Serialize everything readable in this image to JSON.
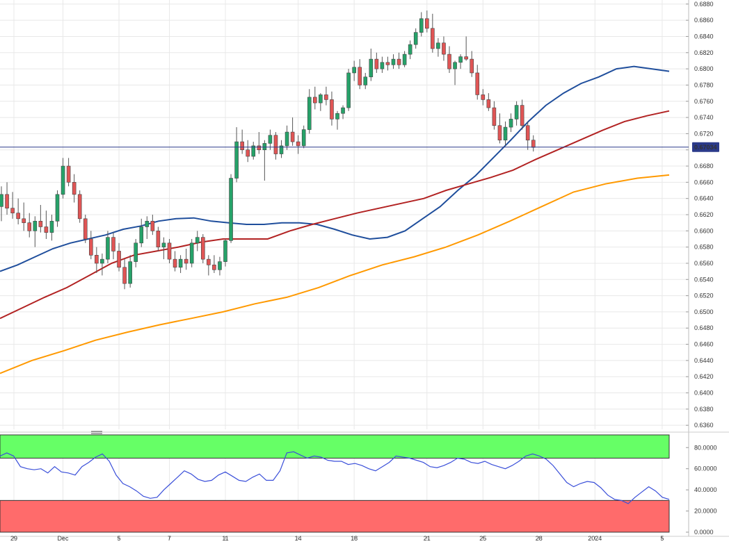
{
  "chart_data": [
    {
      "type": "candlestick",
      "price_axis": {
        "ylim": [
          0.6355,
          0.6885
        ],
        "tick_labels": [
          "0.6880",
          "0.6860",
          "0.6840",
          "0.6820",
          "0.6800",
          "0.6780",
          "0.6760",
          "0.6740",
          "0.6720",
          "0.6700",
          "0.6680",
          "0.6660",
          "0.6640",
          "0.6620",
          "0.6600",
          "0.6580",
          "0.6560",
          "0.6540",
          "0.6520",
          "0.6500",
          "0.6480",
          "0.6460",
          "0.6440",
          "0.6420",
          "0.6400",
          "0.6380",
          "0.6360"
        ],
        "current_price_label": "0.67034",
        "current_price": 0.67034
      },
      "x_axis": {
        "tick_labels": [
          "29",
          "Dec",
          "5",
          "7",
          "11",
          "14",
          "18",
          "21",
          "25",
          "28",
          "2024",
          "5"
        ],
        "tick_positions_bar": [
          0,
          11,
          21,
          30,
          40,
          53,
          63,
          76,
          86,
          96,
          106,
          118
        ]
      },
      "candles_ohlc_4h": [
        [
          0.663,
          0.6655,
          0.6612,
          0.6645
        ],
        [
          0.6645,
          0.666,
          0.662,
          0.6628
        ],
        [
          0.6628,
          0.6648,
          0.6615,
          0.6622
        ],
        [
          0.6622,
          0.664,
          0.6608,
          0.6615
        ],
        [
          0.6615,
          0.6635,
          0.66,
          0.661
        ],
        [
          0.661,
          0.6622,
          0.6592,
          0.66
        ],
        [
          0.66,
          0.6618,
          0.658,
          0.6612
        ],
        [
          0.6612,
          0.6632,
          0.6598,
          0.6605
        ],
        [
          0.6605,
          0.6625,
          0.659,
          0.6598
        ],
        [
          0.6598,
          0.662,
          0.6588,
          0.6612
        ],
        [
          0.6612,
          0.665,
          0.6605,
          0.6645
        ],
        [
          0.6645,
          0.669,
          0.664,
          0.668
        ],
        [
          0.668,
          0.669,
          0.6655,
          0.666
        ],
        [
          0.666,
          0.667,
          0.6635,
          0.6645
        ],
        [
          0.6645,
          0.665,
          0.661,
          0.6615
        ],
        [
          0.6615,
          0.662,
          0.6585,
          0.659
        ],
        [
          0.659,
          0.66,
          0.6565,
          0.657
        ],
        [
          0.657,
          0.658,
          0.6548,
          0.656
        ],
        [
          0.656,
          0.6572,
          0.6545,
          0.6565
        ],
        [
          0.6565,
          0.66,
          0.656,
          0.6592
        ],
        [
          0.6592,
          0.6598,
          0.6565,
          0.6575
        ],
        [
          0.6575,
          0.6585,
          0.655,
          0.6555
        ],
        [
          0.6555,
          0.6565,
          0.6528,
          0.6535
        ],
        [
          0.6535,
          0.657,
          0.653,
          0.6562
        ],
        [
          0.6562,
          0.659,
          0.6555,
          0.6585
        ],
        [
          0.6585,
          0.6615,
          0.658,
          0.6605
        ],
        [
          0.6605,
          0.6618,
          0.659,
          0.6612
        ],
        [
          0.6612,
          0.662,
          0.6595,
          0.66
        ],
        [
          0.66,
          0.6605,
          0.6575,
          0.658
        ],
        [
          0.658,
          0.6592,
          0.6565,
          0.6585
        ],
        [
          0.6585,
          0.659,
          0.656,
          0.6565
        ],
        [
          0.6565,
          0.6575,
          0.655,
          0.6555
        ],
        [
          0.6555,
          0.657,
          0.6548,
          0.6565
        ],
        [
          0.6565,
          0.6578,
          0.6552,
          0.656
        ],
        [
          0.656,
          0.659,
          0.6555,
          0.6585
        ],
        [
          0.6585,
          0.66,
          0.6575,
          0.6592
        ],
        [
          0.6592,
          0.6596,
          0.656,
          0.6565
        ],
        [
          0.6565,
          0.657,
          0.6545,
          0.6558
        ],
        [
          0.6558,
          0.657,
          0.6548,
          0.6552
        ],
        [
          0.6552,
          0.6568,
          0.6545,
          0.6562
        ],
        [
          0.6562,
          0.659,
          0.6556,
          0.6588
        ],
        [
          0.6588,
          0.667,
          0.6585,
          0.6665
        ],
        [
          0.6665,
          0.6728,
          0.666,
          0.671
        ],
        [
          0.671,
          0.6725,
          0.6695,
          0.67
        ],
        [
          0.67,
          0.6712,
          0.6685,
          0.6692
        ],
        [
          0.6692,
          0.671,
          0.6688,
          0.6705
        ],
        [
          0.6705,
          0.6722,
          0.6695,
          0.67
        ],
        [
          0.67,
          0.6712,
          0.6662,
          0.6708
        ],
        [
          0.6708,
          0.6725,
          0.67,
          0.6718
        ],
        [
          0.6718,
          0.6722,
          0.6688,
          0.6695
        ],
        [
          0.6695,
          0.6712,
          0.669,
          0.6705
        ],
        [
          0.6705,
          0.673,
          0.67,
          0.6722
        ],
        [
          0.6722,
          0.674,
          0.6705,
          0.671
        ],
        [
          0.671,
          0.6718,
          0.6695,
          0.6705
        ],
        [
          0.6705,
          0.673,
          0.6702,
          0.6725
        ],
        [
          0.6725,
          0.6775,
          0.672,
          0.6765
        ],
        [
          0.6765,
          0.6778,
          0.675,
          0.6758
        ],
        [
          0.6758,
          0.677,
          0.6748,
          0.6768
        ],
        [
          0.6768,
          0.6778,
          0.6755,
          0.6762
        ],
        [
          0.6762,
          0.6772,
          0.673,
          0.6738
        ],
        [
          0.6738,
          0.6748,
          0.6725,
          0.6745
        ],
        [
          0.6745,
          0.6755,
          0.6738,
          0.6752
        ],
        [
          0.6752,
          0.68,
          0.6748,
          0.6795
        ],
        [
          0.6795,
          0.681,
          0.6785,
          0.6802
        ],
        [
          0.6802,
          0.6812,
          0.6775,
          0.678
        ],
        [
          0.678,
          0.6795,
          0.6775,
          0.679
        ],
        [
          0.679,
          0.6825,
          0.6785,
          0.6812
        ],
        [
          0.6812,
          0.682,
          0.6795,
          0.68
        ],
        [
          0.68,
          0.6815,
          0.6795,
          0.6808
        ],
        [
          0.6808,
          0.6815,
          0.6798,
          0.6805
        ],
        [
          0.6805,
          0.6818,
          0.68,
          0.6812
        ],
        [
          0.6812,
          0.682,
          0.68,
          0.6805
        ],
        [
          0.6805,
          0.6822,
          0.6802,
          0.6818
        ],
        [
          0.6818,
          0.6835,
          0.6812,
          0.683
        ],
        [
          0.683,
          0.685,
          0.6825,
          0.6845
        ],
        [
          0.6845,
          0.687,
          0.684,
          0.6862
        ],
        [
          0.6862,
          0.6872,
          0.6845,
          0.685
        ],
        [
          0.685,
          0.6868,
          0.682,
          0.6825
        ],
        [
          0.6825,
          0.6838,
          0.6815,
          0.6832
        ],
        [
          0.6832,
          0.684,
          0.681,
          0.6818
        ],
        [
          0.6818,
          0.6828,
          0.6795,
          0.68
        ],
        [
          0.68,
          0.681,
          0.678,
          0.6808
        ],
        [
          0.6808,
          0.6818,
          0.68,
          0.6815
        ],
        [
          0.6815,
          0.684,
          0.681,
          0.6812
        ],
        [
          0.6812,
          0.6822,
          0.679,
          0.6795
        ],
        [
          0.6795,
          0.6805,
          0.6762,
          0.6768
        ],
        [
          0.6768,
          0.6775,
          0.6755,
          0.6762
        ],
        [
          0.6762,
          0.677,
          0.6748,
          0.6752
        ],
        [
          0.6752,
          0.676,
          0.6725,
          0.673
        ],
        [
          0.673,
          0.6745,
          0.6708,
          0.6712
        ],
        [
          0.6712,
          0.6735,
          0.6705,
          0.6728
        ],
        [
          0.6728,
          0.6745,
          0.6722,
          0.6738
        ],
        [
          0.6738,
          0.676,
          0.673,
          0.6755
        ],
        [
          0.6755,
          0.6762,
          0.6725,
          0.673
        ],
        [
          0.673,
          0.6735,
          0.67,
          0.6712
        ],
        [
          0.6712,
          0.6718,
          0.6698,
          0.6703
        ]
      ],
      "series": [
        {
          "name": "",
          "color": "#1f4e9c",
          "values": [
            0.655,
            0.6558,
            0.6568,
            0.6578,
            0.6585,
            0.659,
            0.6595,
            0.6602,
            0.6606,
            0.6612,
            0.6615,
            0.6616,
            0.6612,
            0.661,
            0.6608,
            0.6608,
            0.661,
            0.661,
            0.6608,
            0.6602,
            0.6595,
            0.659,
            0.6592,
            0.66,
            0.6615,
            0.663,
            0.665,
            0.6668,
            0.669,
            0.6712,
            0.6735,
            0.6755,
            0.677,
            0.6782,
            0.679,
            0.68,
            0.6803,
            0.68,
            0.6797
          ]
        },
        {
          "name": "",
          "color": "#b22222",
          "values": [
            0.6492,
            0.6505,
            0.6518,
            0.653,
            0.6545,
            0.656,
            0.657,
            0.6575,
            0.658,
            0.6586,
            0.659,
            0.659,
            0.659,
            0.66,
            0.6608,
            0.6615,
            0.6622,
            0.6628,
            0.6634,
            0.664,
            0.665,
            0.6658,
            0.6666,
            0.6675,
            0.6688,
            0.67,
            0.6712,
            0.6724,
            0.6735,
            0.6742,
            0.6748
          ]
        },
        {
          "name": "",
          "color": "#ff9900",
          "values": [
            0.6424,
            0.644,
            0.6452,
            0.6465,
            0.6475,
            0.6484,
            0.6492,
            0.65,
            0.651,
            0.6518,
            0.653,
            0.6545,
            0.6558,
            0.6568,
            0.658,
            0.6595,
            0.6612,
            0.663,
            0.6648,
            0.6658,
            0.6665,
            0.6669
          ]
        }
      ],
      "horizontal_line": {
        "value": 0.67034,
        "color": "#2b3a8a"
      }
    },
    {
      "type": "line",
      "ylim": [
        0,
        92
      ],
      "tick_labels": [
        "80.0000",
        "60.0000",
        "40.0000",
        "20.0000",
        "0.0000"
      ],
      "bands": [
        {
          "from": 70,
          "to": 92,
          "color": "#66ff66"
        },
        {
          "from": 0,
          "to": 30,
          "color": "#ff6b6b"
        }
      ],
      "series": [
        {
          "name": "",
          "color": "#3a4fd9",
          "values": [
            72,
            75,
            72,
            62,
            60,
            59,
            60,
            56,
            62,
            57,
            56,
            54,
            62,
            66,
            71,
            74,
            67,
            54,
            46,
            43,
            39,
            34,
            32,
            33,
            40,
            46,
            52,
            58,
            55,
            50,
            48,
            49,
            54,
            57,
            53,
            49,
            48,
            52,
            55,
            49,
            49,
            58,
            75,
            76,
            73,
            70,
            72,
            71,
            68,
            67,
            67,
            64,
            65,
            63,
            60,
            58,
            62,
            66,
            72,
            71,
            70,
            68,
            66,
            62,
            61,
            63,
            66,
            70,
            69,
            66,
            65,
            67,
            64,
            62,
            60,
            63,
            67,
            72,
            74,
            72,
            69,
            63,
            55,
            47,
            43,
            46,
            48,
            47,
            42,
            35,
            31,
            30,
            27,
            33,
            38,
            43,
            39,
            33,
            31
          ]
        }
      ]
    }
  ],
  "colors": {
    "up_candle": "#26a269",
    "down_candle": "#e05555",
    "price_label_bg": "#2b3a8a",
    "grid": "#e8e8e8"
  }
}
